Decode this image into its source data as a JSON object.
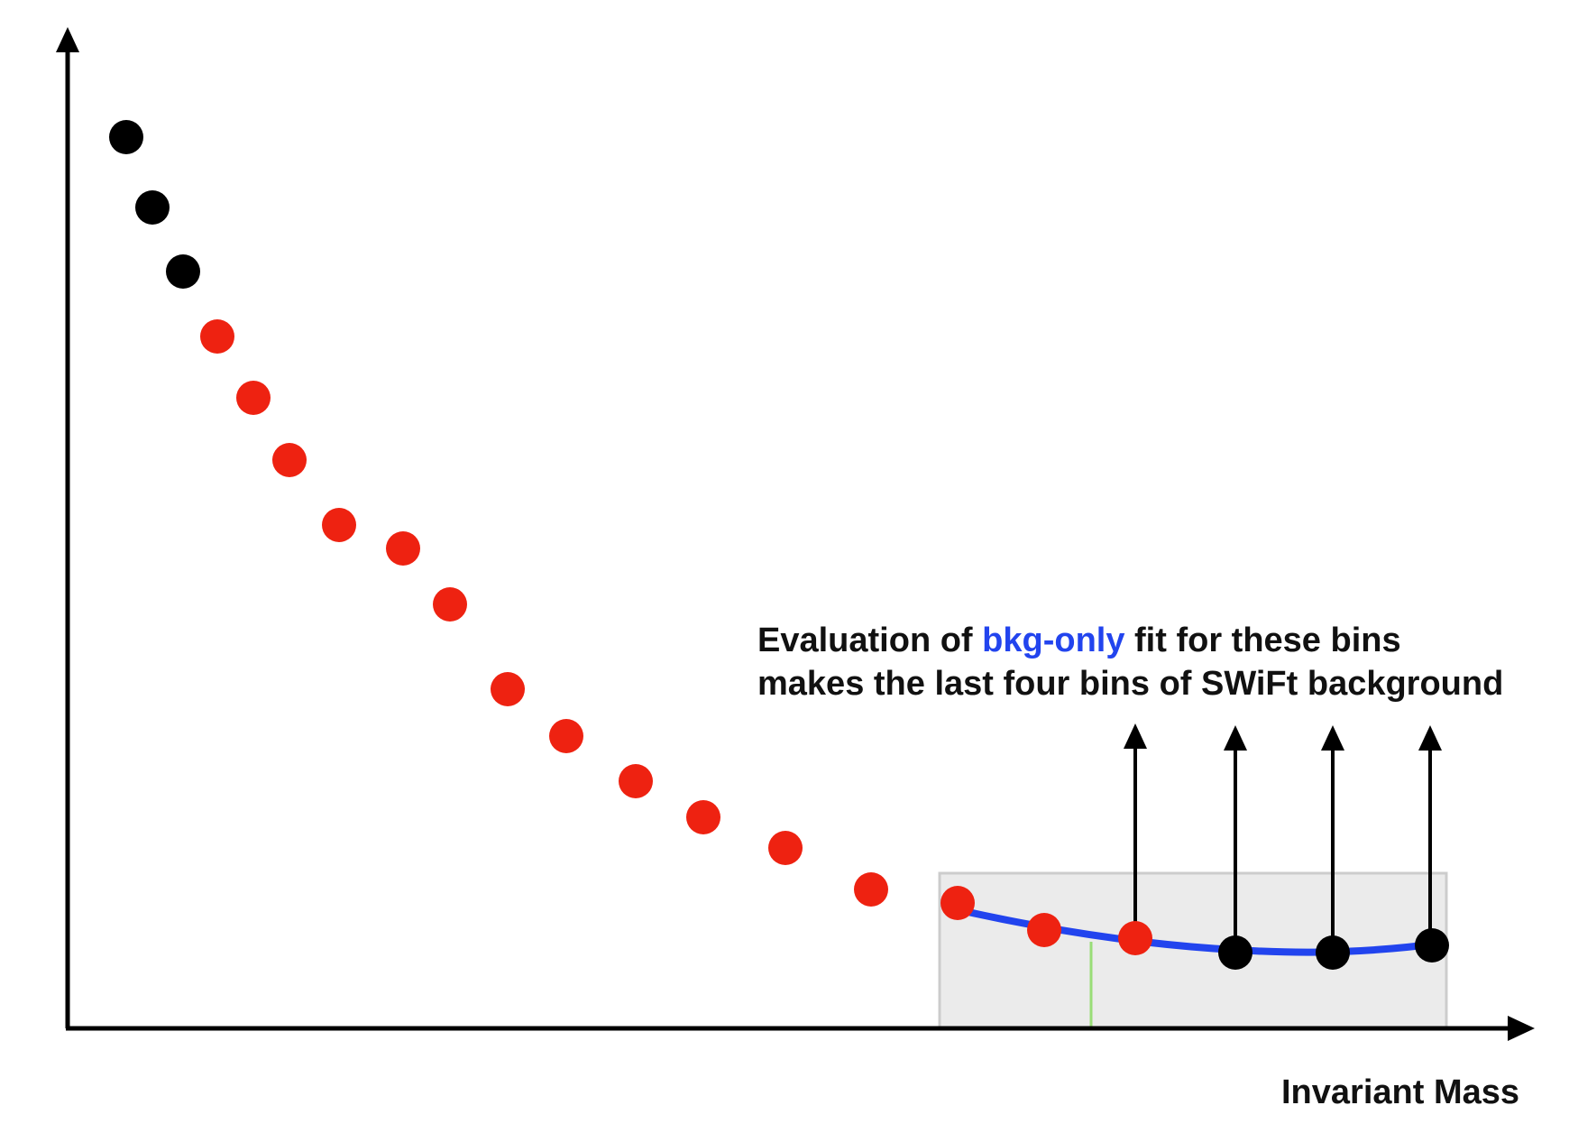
{
  "annotation": {
    "line1_before": "Evaluation of ",
    "line1_highlight": "bkg-only",
    "line1_after": " fit for these bins",
    "line2": "makes the last four bins of SWiFt background"
  },
  "axis": {
    "xlabel": "Invariant Mass"
  },
  "colors": {
    "black_point": "#000000",
    "red_point": "#ee2211",
    "fit_curve": "#2244ee",
    "window_fill": "#ebebeb",
    "window_border": "#cccccc",
    "center_line": "#99dd77",
    "text": "#111111"
  },
  "points": [
    {
      "group": "black"
    },
    {
      "group": "black"
    },
    {
      "group": "black"
    },
    {
      "group": "red"
    },
    {
      "group": "red"
    },
    {
      "group": "red"
    },
    {
      "group": "red"
    },
    {
      "group": "red"
    },
    {
      "group": "red"
    },
    {
      "group": "red"
    },
    {
      "group": "red"
    },
    {
      "group": "red"
    },
    {
      "group": "red"
    },
    {
      "group": "red"
    },
    {
      "group": "red"
    },
    {
      "group": "red"
    },
    {
      "group": "red"
    },
    {
      "group": "red"
    },
    {
      "group": "black"
    },
    {
      "group": "black"
    },
    {
      "group": "black"
    }
  ]
}
